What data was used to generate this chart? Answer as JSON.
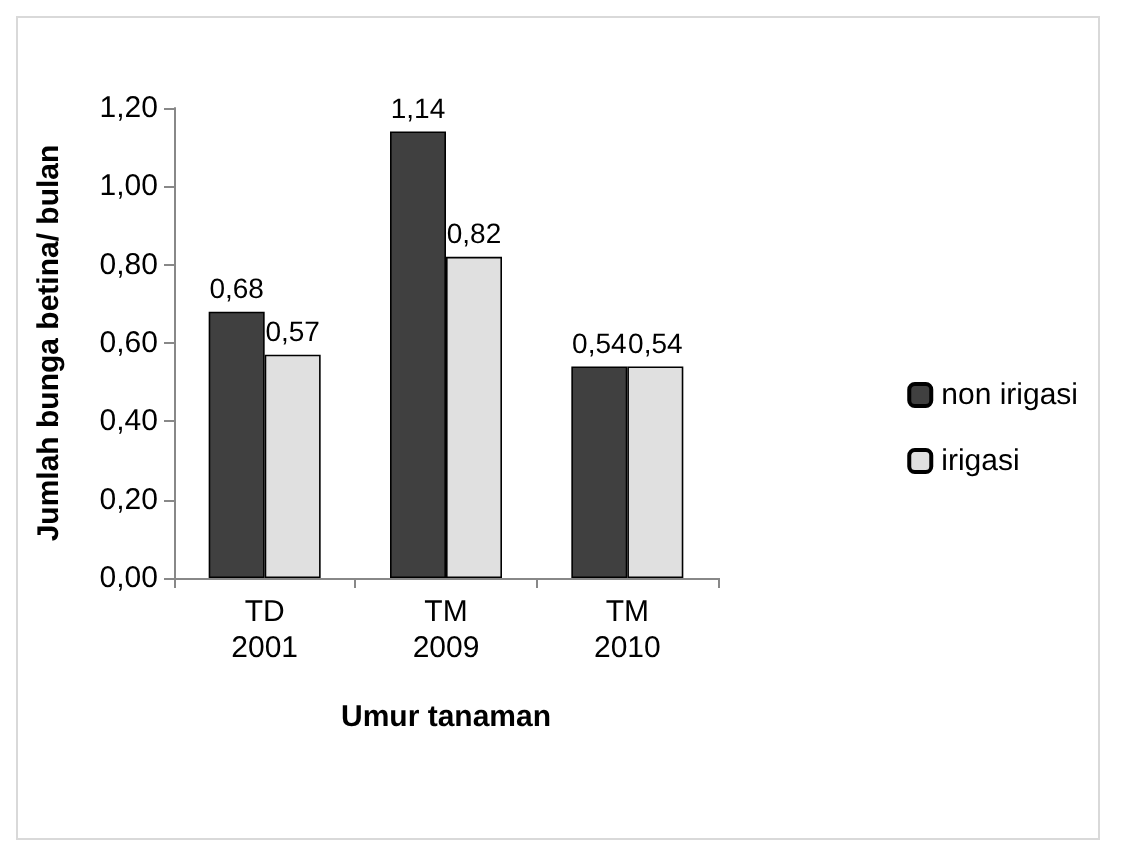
{
  "chart_data": {
    "type": "bar",
    "xlabel": "Umur tanaman",
    "ylabel": "Jumlah bunga betina/ bulan",
    "categories": [
      "TD 2001",
      "TM 2009",
      "TM 2010"
    ],
    "series": [
      {
        "name": "non irigasi",
        "color": "#404040",
        "values": [
          0.68,
          1.14,
          0.54
        ],
        "value_labels": [
          "0,68",
          "1,14",
          "0,54"
        ]
      },
      {
        "name": "irigasi",
        "color": "#e0e0e0",
        "values": [
          0.57,
          0.82,
          0.54
        ],
        "value_labels": [
          "0,57",
          "0,82",
          "0,54"
        ]
      }
    ],
    "ylim": [
      0,
      1.2
    ],
    "yticks": [
      {
        "value": 0,
        "label": "0,00"
      },
      {
        "value": 0.2,
        "label": "0,20"
      },
      {
        "value": 0.4,
        "label": "0,40"
      },
      {
        "value": 0.6,
        "label": "0,60"
      },
      {
        "value": 0.8,
        "label": "0,80"
      },
      {
        "value": 1,
        "label": "1,00"
      },
      {
        "value": 1.2,
        "label": "1,20"
      }
    ],
    "grid": false,
    "legend": "right"
  }
}
